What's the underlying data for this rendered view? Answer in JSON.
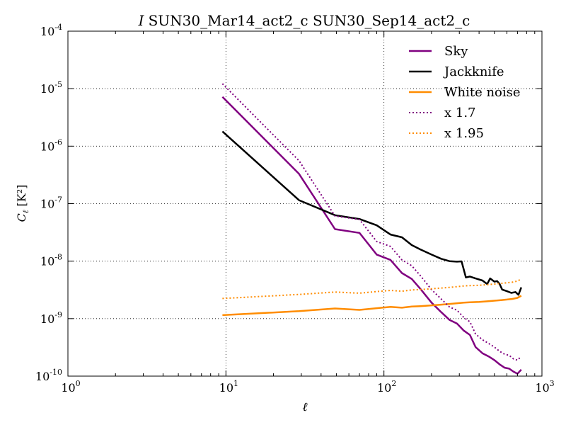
{
  "chart_data": {
    "type": "line",
    "title_italic": "I",
    "title_rest": "SUN30_Mar14_act2_c SUN30_Sep14_act2_c",
    "xlabel": "ℓ",
    "ylabel_main": "C",
    "ylabel_sub": "ℓ",
    "ylabel_unit": "[K²]",
    "x_scale": "log",
    "y_scale": "log",
    "xlim": [
      1,
      1000
    ],
    "ylim": [
      1e-10,
      0.0001
    ],
    "grid": true,
    "legend_position": "top-right",
    "x_ticks": [
      {
        "value": 1,
        "base": "10",
        "exp": "0"
      },
      {
        "value": 10,
        "base": "10",
        "exp": "1"
      },
      {
        "value": 100,
        "base": "10",
        "exp": "2"
      },
      {
        "value": 1000,
        "base": "10",
        "exp": "3"
      }
    ],
    "y_ticks": [
      {
        "value": 1e-10,
        "base": "10",
        "exp": "-10"
      },
      {
        "value": 1e-09,
        "base": "10",
        "exp": "-9"
      },
      {
        "value": 1e-08,
        "base": "10",
        "exp": "-8"
      },
      {
        "value": 1e-07,
        "base": "10",
        "exp": "-7"
      },
      {
        "value": 1e-06,
        "base": "10",
        "exp": "-6"
      },
      {
        "value": 1e-05,
        "base": "10",
        "exp": "-5"
      },
      {
        "value": 0.0001,
        "base": "10",
        "exp": "-4"
      }
    ],
    "series": [
      {
        "name": "Sky",
        "color": "#800080",
        "style": "solid",
        "x": [
          9.5,
          29,
          49,
          70,
          90,
          110,
          130,
          150,
          170,
          200,
          230,
          260,
          290,
          320,
          350,
          380,
          420,
          460,
          500,
          540,
          580,
          620,
          660,
          700,
          740
        ],
        "y": [
          7.2e-06,
          3.3e-07,
          3.6e-08,
          3.1e-08,
          1.3e-08,
          1.05e-08,
          6.2e-09,
          4.9e-09,
          3.3e-09,
          1.9e-09,
          1.3e-09,
          9.5e-10,
          8.2e-10,
          6.2e-10,
          5.2e-10,
          3.2e-10,
          2.5e-10,
          2.2e-10,
          1.9e-10,
          1.6e-10,
          1.4e-10,
          1.35e-10,
          1.2e-10,
          1.1e-10,
          1.3e-10
        ]
      },
      {
        "name": "Jackknife",
        "color": "#000000",
        "style": "solid",
        "x": [
          9.5,
          29,
          49,
          70,
          90,
          110,
          130,
          150,
          170,
          200,
          230,
          260,
          290,
          310,
          330,
          350,
          380,
          420,
          450,
          470,
          500,
          520,
          540,
          560,
          600,
          640,
          680,
          710,
          740
        ],
        "y": [
          1.8e-06,
          1.15e-07,
          6.3e-08,
          5.4e-08,
          4.2e-08,
          2.9e-08,
          2.6e-08,
          1.9e-08,
          1.6e-08,
          1.3e-08,
          1.1e-08,
          1e-08,
          9.8e-09,
          9.9e-09,
          5.2e-09,
          5.4e-09,
          5e-09,
          4.6e-09,
          4e-09,
          5e-09,
          4.4e-09,
          4.5e-09,
          4e-09,
          3.2e-09,
          3e-09,
          2.8e-09,
          2.9e-09,
          2.6e-09,
          3.5e-09
        ]
      },
      {
        "name": "White noise",
        "color": "#ff8c00",
        "style": "solid",
        "x": [
          9.5,
          29,
          49,
          70,
          90,
          110,
          130,
          150,
          170,
          200,
          230,
          260,
          290,
          320,
          350,
          400,
          450,
          500,
          550,
          600,
          650,
          700,
          740
        ],
        "y": [
          1.15e-09,
          1.35e-09,
          1.5e-09,
          1.42e-09,
          1.52e-09,
          1.6e-09,
          1.55e-09,
          1.62e-09,
          1.65e-09,
          1.7e-09,
          1.75e-09,
          1.8e-09,
          1.85e-09,
          1.9e-09,
          1.92e-09,
          1.95e-09,
          2e-09,
          2.05e-09,
          2.1e-09,
          2.15e-09,
          2.2e-09,
          2.3e-09,
          2.5e-09
        ]
      },
      {
        "name": "x 1.7",
        "color": "#800080",
        "style": "dotted",
        "x": [
          9.5,
          29,
          49,
          70,
          90,
          110,
          130,
          150,
          170,
          200,
          230,
          260,
          290,
          320,
          350,
          380,
          420,
          460,
          500,
          540,
          580,
          620,
          660,
          700,
          740
        ],
        "y": [
          1.22e-05,
          5.6e-07,
          6.1e-08,
          5.3e-08,
          2.2e-08,
          1.8e-08,
          1.05e-08,
          8.3e-09,
          5.6e-09,
          3.2e-09,
          2.2e-09,
          1.6e-09,
          1.4e-09,
          1.05e-09,
          8.8e-10,
          5.4e-10,
          4.3e-10,
          3.7e-10,
          3.2e-10,
          2.7e-10,
          2.4e-10,
          2.3e-10,
          2e-10,
          1.9e-10,
          2.2e-10
        ]
      },
      {
        "name": "x 1.95",
        "color": "#ff8c00",
        "style": "dotted",
        "x": [
          9.5,
          29,
          49,
          70,
          90,
          110,
          130,
          150,
          170,
          200,
          230,
          260,
          290,
          320,
          350,
          400,
          450,
          500,
          550,
          600,
          650,
          700,
          740
        ],
        "y": [
          2.24e-09,
          2.63e-09,
          2.9e-09,
          2.77e-09,
          2.96e-09,
          3.1e-09,
          3e-09,
          3.16e-09,
          3.2e-09,
          3.3e-09,
          3.4e-09,
          3.5e-09,
          3.6e-09,
          3.7e-09,
          3.75e-09,
          3.8e-09,
          3.9e-09,
          4e-09,
          4.1e-09,
          4.2e-09,
          4.3e-09,
          4.5e-09,
          4.9e-09
        ]
      }
    ]
  }
}
